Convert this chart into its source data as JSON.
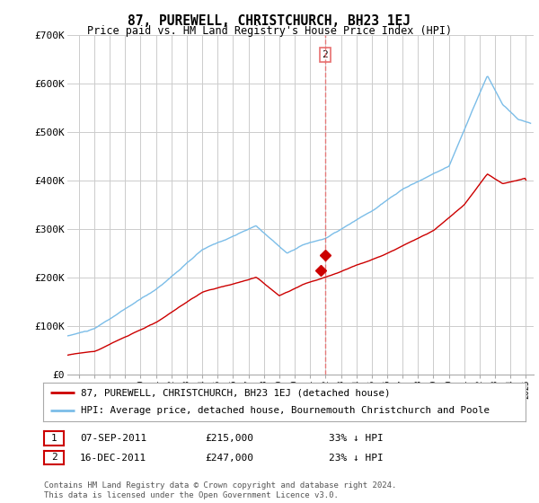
{
  "title": "87, PUREWELL, CHRISTCHURCH, BH23 1EJ",
  "subtitle": "Price paid vs. HM Land Registry's House Price Index (HPI)",
  "ylabel_ticks": [
    "£0",
    "£100K",
    "£200K",
    "£300K",
    "£400K",
    "£500K",
    "£600K",
    "£700K"
  ],
  "ylim": [
    0,
    700000
  ],
  "xlim_start": 1995.25,
  "xlim_end": 2025.5,
  "hpi_color": "#7bbde8",
  "price_color": "#cc0000",
  "vertical_line_color": "#e87070",
  "transaction1_date": 2011.68,
  "transaction1_price": 215000,
  "transaction2_date": 2011.97,
  "transaction2_price": 247000,
  "legend_entry1": "87, PUREWELL, CHRISTCHURCH, BH23 1EJ (detached house)",
  "legend_entry2": "HPI: Average price, detached house, Bournemouth Christchurch and Poole",
  "table_row1": [
    "1",
    "07-SEP-2011",
    "£215,000",
    "33% ↓ HPI"
  ],
  "table_row2": [
    "2",
    "16-DEC-2011",
    "£247,000",
    "23% ↓ HPI"
  ],
  "footnote": "Contains HM Land Registry data © Crown copyright and database right 2024.\nThis data is licensed under the Open Government Licence v3.0.",
  "bg_color": "#ffffff",
  "grid_color": "#cccccc"
}
